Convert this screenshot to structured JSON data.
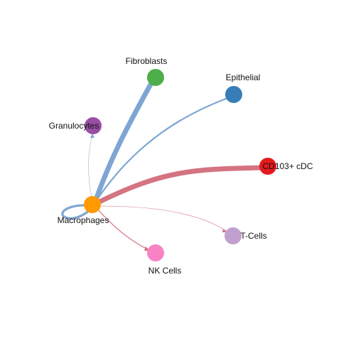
{
  "nodes": {
    "fibroblasts": {
      "label": "Fibroblasts",
      "color": "#4daf4a"
    },
    "epithelial": {
      "label": "Epithelial",
      "color": "#377eb8"
    },
    "granulocytes": {
      "label": "Granulocytes",
      "color": "#984ea3"
    },
    "cd103_cdc": {
      "label": "CD103+ cDC",
      "color": "#e41a1c"
    },
    "macrophages": {
      "label": "Macrophages",
      "color": "#ff9900"
    },
    "t_cells": {
      "label": "T-Cells",
      "color": "#c1a0d0"
    },
    "nk_cells": {
      "label": "NK Cells",
      "color": "#f783c4"
    }
  },
  "edge_colors": {
    "blue": "#7ea6d3",
    "red": "#d37480"
  }
}
